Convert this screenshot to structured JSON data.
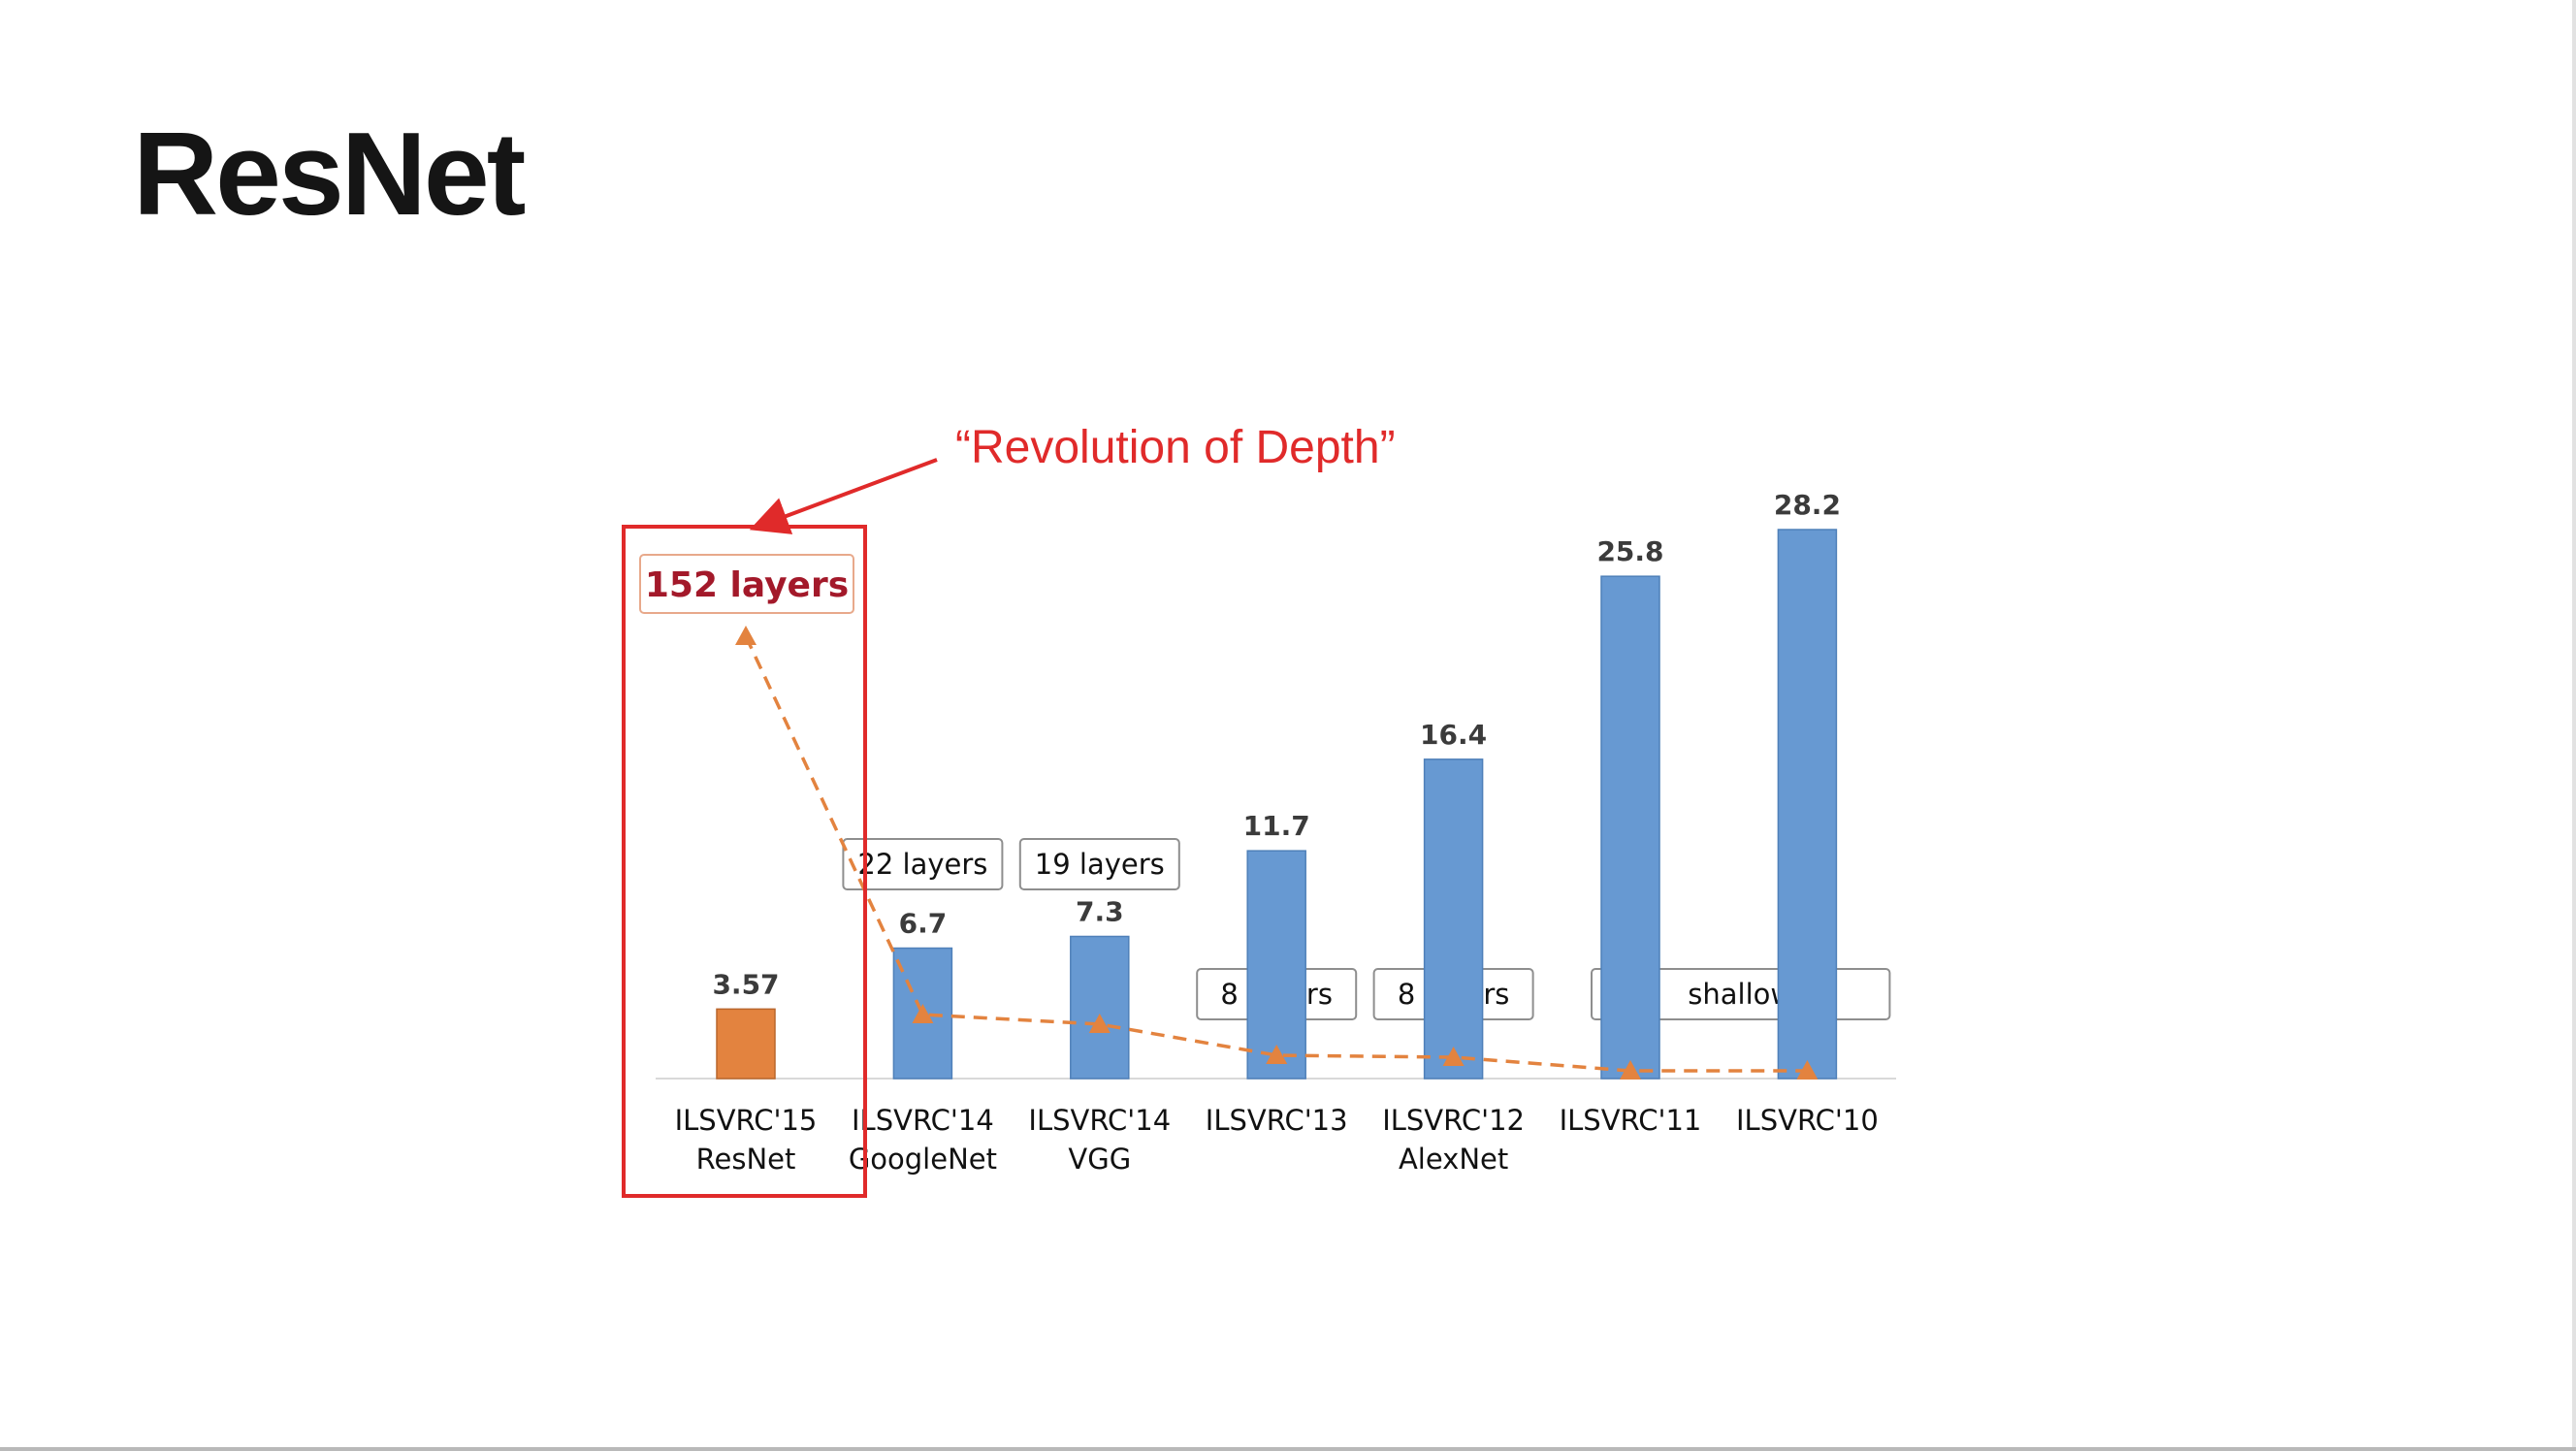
{
  "slide": {
    "title": "ResNet"
  },
  "colors": {
    "bar_default": "#6799d2",
    "bar_highlight": "#e3833f",
    "trend_line": "#e3833f",
    "annotation_red": "#e02a2a",
    "highlight_label": "#a3192a",
    "axis": "#d9d9d9"
  },
  "chart_data": {
    "type": "bar",
    "title": "",
    "xlabel": "",
    "ylabel": "",
    "ylim": [
      0,
      28.2
    ],
    "grid": false,
    "legend": "none",
    "categories": [
      {
        "line1": "ILSVRC'15",
        "line2": "ResNet"
      },
      {
        "line1": "ILSVRC'14",
        "line2": "GoogleNet"
      },
      {
        "line1": "ILSVRC'14",
        "line2": "VGG"
      },
      {
        "line1": "ILSVRC'13",
        "line2": ""
      },
      {
        "line1": "ILSVRC'12",
        "line2": "AlexNet"
      },
      {
        "line1": "ILSVRC'11",
        "line2": ""
      },
      {
        "line1": "ILSVRC'10",
        "line2": ""
      }
    ],
    "values": [
      3.57,
      6.7,
      7.3,
      11.7,
      16.4,
      25.8,
      28.2
    ],
    "value_labels": [
      "3.57",
      "6.7",
      "7.3",
      "11.7",
      "16.4",
      "25.8",
      "28.2"
    ],
    "highlight_index": 0,
    "layer_labels": [
      {
        "text": "152 layers",
        "covers": [
          0
        ]
      },
      {
        "text": "22 layers",
        "covers": [
          1
        ]
      },
      {
        "text": "19 layers",
        "covers": [
          2
        ]
      },
      {
        "text": "8 layers",
        "covers": [
          3
        ]
      },
      {
        "text": "8 layers",
        "covers": [
          4
        ]
      },
      {
        "text": "shallow",
        "covers": [
          5,
          6
        ]
      }
    ],
    "callout": {
      "text": "“Revolution of Depth”",
      "target_index": 0
    }
  }
}
